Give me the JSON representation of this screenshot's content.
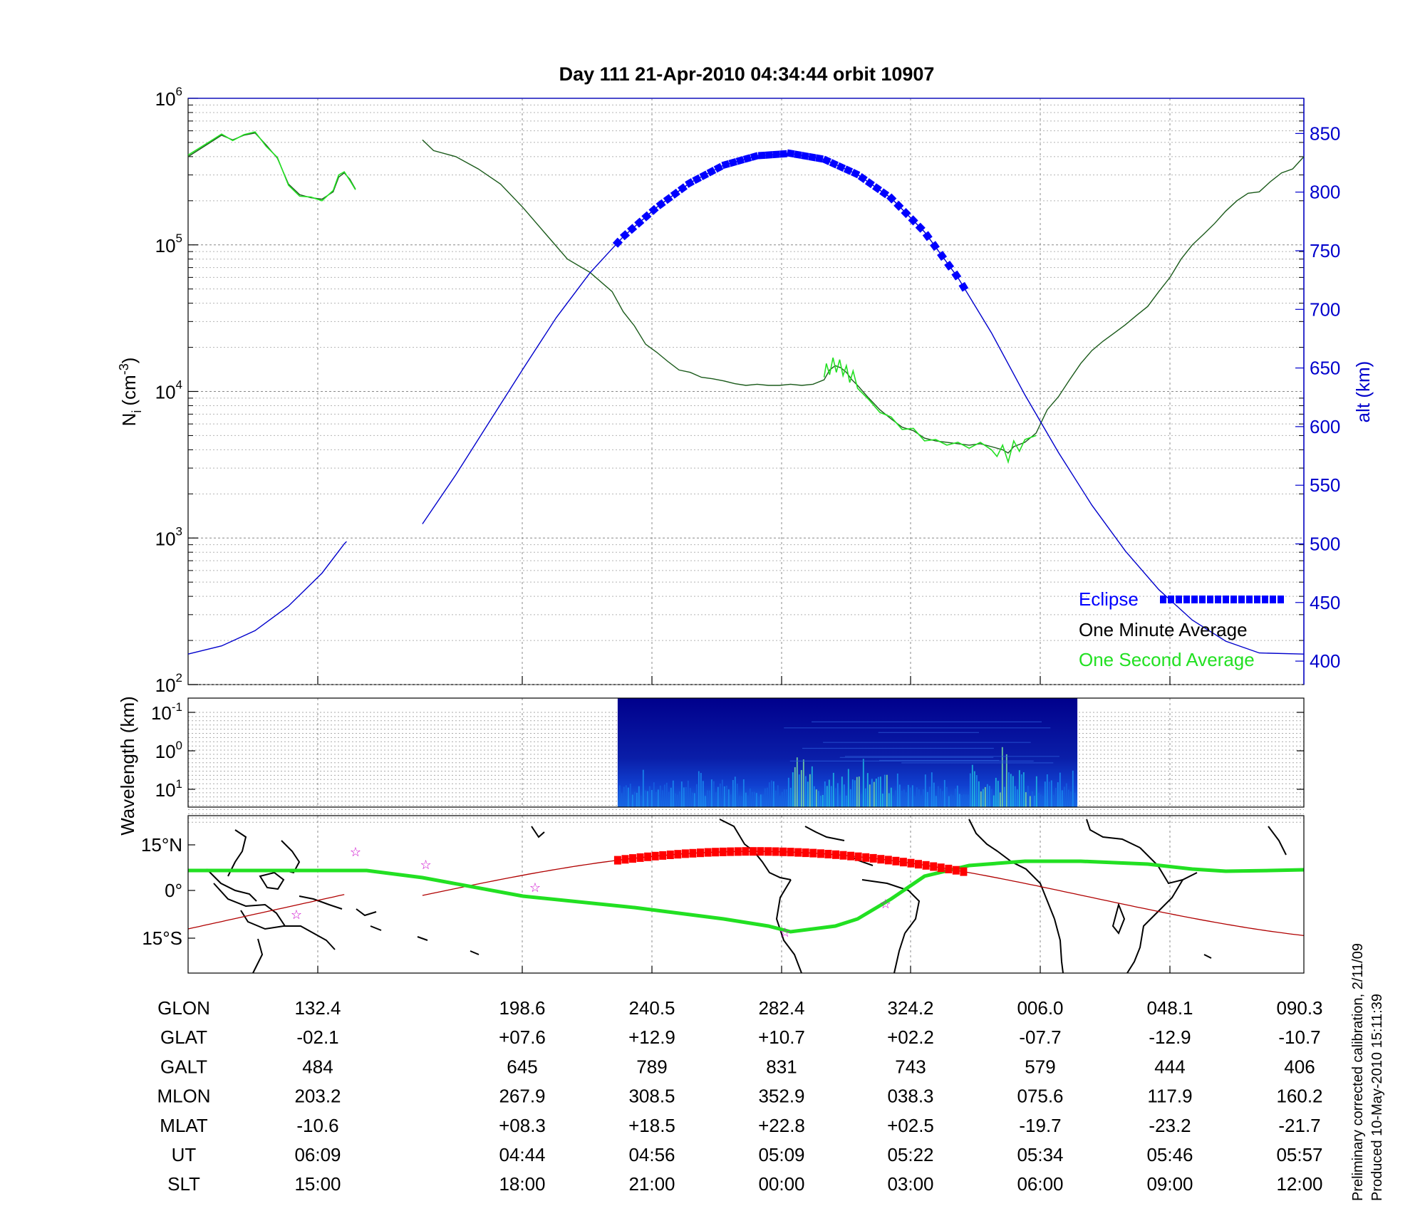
{
  "title": "Day 111  21-Apr-2010 04:34:44   orbit 10907",
  "footer_note": {
    "line1": "Preliminary corrected calibration, 2/11/09",
    "line2": "Produced 10-May-2010 15:11:39"
  },
  "colors": {
    "altitude": "#0000cc",
    "eclipse": "#0000ff",
    "one_minute": "#1a5a1a",
    "one_second": "#22e022",
    "ground_track": "#b00000",
    "eclipse_track": "#ff0000",
    "magnetic_equator": "#22e022",
    "stars": "#cc00cc"
  },
  "chart_data": [
    {
      "type": "line",
      "panel": "density",
      "title": "Day 111  21-Apr-2010 04:34:44   orbit 10907",
      "ylabel": "N",
      "ylabel_sub": "i",
      "ylabel_unit": "(cm",
      "ylabel_unit_sup": "-3",
      "ylabel_unit_close": ")",
      "ylabel_right": "alt (km)",
      "y_log": true,
      "ylim": [
        100,
        1000000
      ],
      "y_ticks": [
        {
          "base": "10",
          "exp": "2",
          "value": 100
        },
        {
          "base": "10",
          "exp": "3",
          "value": 1000
        },
        {
          "base": "10",
          "exp": "4",
          "value": 10000
        },
        {
          "base": "10",
          "exp": "5",
          "value": 100000
        },
        {
          "base": "10",
          "exp": "6",
          "value": 1000000
        }
      ],
      "y2lim": [
        380,
        880
      ],
      "y2_ticks": [
        "400",
        "450",
        "500",
        "550",
        "600",
        "650",
        "700",
        "750",
        "800",
        "850"
      ],
      "x_major": [
        "GLON 132.4",
        "198.6",
        "240.5",
        "282.4",
        "324.2",
        "006.0",
        "048.1",
        "090.3"
      ],
      "grid": true,
      "legend_position": "bottom-right",
      "legend": [
        {
          "label": "Eclipse",
          "color_key": "eclipse",
          "marker": "squares"
        },
        {
          "label": "One Minute Average",
          "color_key": "one_minute"
        },
        {
          "label": "One Second Average",
          "color_key": "one_second"
        }
      ],
      "x_range_note": "x in fractional orbit position, 0 = left edge, 1 = right edge",
      "series": [
        {
          "name": "One Minute Average",
          "segments": [
            [
              [
                0.0,
                400000
              ],
              [
                0.02,
                500000
              ],
              [
                0.03,
                560000
              ],
              [
                0.04,
                520000
              ],
              [
                0.05,
                560000
              ],
              [
                0.06,
                580000
              ],
              [
                0.07,
                480000
              ],
              [
                0.08,
                390000
              ],
              [
                0.09,
                260000
              ],
              [
                0.1,
                220000
              ],
              [
                0.11,
                210000
              ],
              [
                0.12,
                205000
              ],
              [
                0.13,
                230000
              ],
              [
                0.135,
                290000
              ],
              [
                0.14,
                310000
              ],
              [
                0.145,
                280000
              ],
              [
                0.15,
                240000
              ]
            ],
            [
              [
                0.21,
                520000
              ],
              [
                0.22,
                440000
              ],
              [
                0.24,
                400000
              ],
              [
                0.26,
                330000
              ],
              [
                0.28,
                260000
              ],
              [
                0.3,
                180000
              ],
              [
                0.32,
                120000
              ],
              [
                0.34,
                80000
              ],
              [
                0.36,
                65000
              ],
              [
                0.38,
                48000
              ],
              [
                0.39,
                35000
              ],
              [
                0.4,
                28000
              ],
              [
                0.41,
                21000
              ],
              [
                0.42,
                18500
              ],
              [
                0.43,
                16000
              ],
              [
                0.44,
                14000
              ],
              [
                0.45,
                13500
              ],
              [
                0.46,
                12500
              ],
              [
                0.47,
                12200
              ],
              [
                0.48,
                11800
              ],
              [
                0.49,
                11300
              ],
              [
                0.5,
                11000
              ],
              [
                0.51,
                11200
              ],
              [
                0.52,
                11000
              ],
              [
                0.53,
                11000
              ],
              [
                0.54,
                11200
              ],
              [
                0.55,
                11000
              ],
              [
                0.56,
                11200
              ],
              [
                0.57,
                12000
              ],
              [
                0.575,
                14000
              ],
              [
                0.58,
                15000
              ],
              [
                0.585,
                14500
              ],
              [
                0.59,
                13500
              ],
              [
                0.595,
                12000
              ],
              [
                0.6,
                11000
              ],
              [
                0.61,
                9000
              ],
              [
                0.62,
                7500
              ],
              [
                0.63,
                6500
              ],
              [
                0.64,
                5700
              ],
              [
                0.65,
                5400
              ],
              [
                0.66,
                4800
              ],
              [
                0.67,
                4600
              ],
              [
                0.68,
                4500
              ],
              [
                0.69,
                4400
              ],
              [
                0.7,
                4300
              ],
              [
                0.71,
                4400
              ],
              [
                0.72,
                4200
              ],
              [
                0.73,
                4000
              ],
              [
                0.735,
                3800
              ],
              [
                0.74,
                4200
              ],
              [
                0.75,
                4500
              ],
              [
                0.76,
                5200
              ],
              [
                0.77,
                7500
              ],
              [
                0.78,
                9200
              ],
              [
                0.79,
                12000
              ],
              [
                0.8,
                15500
              ],
              [
                0.81,
                19000
              ],
              [
                0.82,
                22000
              ],
              [
                0.83,
                25000
              ],
              [
                0.84,
                28500
              ],
              [
                0.85,
                33000
              ],
              [
                0.86,
                38000
              ],
              [
                0.87,
                48000
              ],
              [
                0.88,
                60000
              ],
              [
                0.89,
                80000
              ],
              [
                0.9,
                100000
              ],
              [
                0.91,
                118000
              ],
              [
                0.92,
                140000
              ],
              [
                0.93,
                170000
              ],
              [
                0.94,
                200000
              ],
              [
                0.95,
                225000
              ],
              [
                0.96,
                230000
              ],
              [
                0.97,
                270000
              ],
              [
                0.98,
                310000
              ],
              [
                0.99,
                330000
              ],
              [
                1.0,
                400000
              ]
            ]
          ]
        },
        {
          "name": "One Second Average",
          "segments": [
            [
              [
                0.0,
                410000
              ],
              [
                0.02,
                510000
              ],
              [
                0.03,
                570000
              ],
              [
                0.04,
                515000
              ],
              [
                0.05,
                565000
              ],
              [
                0.06,
                590000
              ],
              [
                0.07,
                470000
              ],
              [
                0.08,
                395000
              ],
              [
                0.09,
                255000
              ],
              [
                0.1,
                215000
              ],
              [
                0.11,
                212000
              ],
              [
                0.12,
                200000
              ],
              [
                0.13,
                235000
              ],
              [
                0.135,
                300000
              ],
              [
                0.14,
                315000
              ],
              [
                0.145,
                275000
              ],
              [
                0.15,
                238000
              ]
            ],
            [
              [
                0.57,
                12500
              ],
              [
                0.572,
                15500
              ],
              [
                0.575,
                13000
              ],
              [
                0.578,
                17000
              ],
              [
                0.581,
                13500
              ],
              [
                0.584,
                16500
              ],
              [
                0.587,
                12800
              ],
              [
                0.59,
                15000
              ],
              [
                0.593,
                11500
              ],
              [
                0.596,
                13800
              ],
              [
                0.6,
                10500
              ],
              [
                0.61,
                8800
              ],
              [
                0.62,
                7200
              ],
              [
                0.63,
                6700
              ],
              [
                0.64,
                5500
              ],
              [
                0.65,
                5600
              ],
              [
                0.66,
                4600
              ],
              [
                0.67,
                4700
              ],
              [
                0.68,
                4300
              ],
              [
                0.69,
                4500
              ],
              [
                0.7,
                4100
              ],
              [
                0.71,
                4500
              ],
              [
                0.72,
                4000
              ],
              [
                0.725,
                3600
              ],
              [
                0.73,
                4300
              ],
              [
                0.735,
                3300
              ],
              [
                0.74,
                4600
              ],
              [
                0.745,
                3900
              ],
              [
                0.75,
                4700
              ],
              [
                0.76,
                5000
              ]
            ]
          ]
        },
        {
          "name": "alt (km)",
          "axis": "right",
          "segments": [
            [
              [
                0.0,
                406
              ],
              [
                0.03,
                413
              ],
              [
                0.06,
                426
              ],
              [
                0.09,
                447
              ],
              [
                0.12,
                475
              ],
              [
                0.14,
                500
              ],
              [
                0.142,
                502
              ]
            ],
            [
              [
                0.21,
                517
              ],
              [
                0.24,
                559
              ],
              [
                0.27,
                604
              ],
              [
                0.3,
                649
              ],
              [
                0.33,
                693
              ],
              [
                0.36,
                731
              ],
              [
                0.39,
                762
              ],
              [
                0.42,
                787
              ],
              [
                0.45,
                808
              ],
              [
                0.48,
                823
              ],
              [
                0.51,
                831
              ],
              [
                0.54,
                833
              ],
              [
                0.57,
                828
              ],
              [
                0.6,
                815
              ],
              [
                0.63,
                795
              ],
              [
                0.66,
                766
              ],
              [
                0.69,
                727
              ],
              [
                0.72,
                680
              ],
              [
                0.75,
                627
              ],
              [
                0.78,
                578
              ],
              [
                0.81,
                533
              ],
              [
                0.84,
                494
              ],
              [
                0.87,
                461
              ],
              [
                0.9,
                435
              ],
              [
                0.93,
                417
              ],
              [
                0.96,
                407
              ],
              [
                1.0,
                406
              ]
            ]
          ]
        }
      ],
      "eclipse": {
        "x_start": 0.385,
        "x_end": 0.695
      }
    },
    {
      "type": "heatmap",
      "panel": "spectrogram",
      "ylabel": "Wavelength (km)",
      "y_ticks": [
        {
          "base": "10",
          "exp": "-1"
        },
        {
          "base": "10",
          "exp": "0"
        },
        {
          "base": "10",
          "exp": "1"
        }
      ],
      "x_start": 0.385,
      "x_end": 0.797
    },
    {
      "type": "line",
      "panel": "map",
      "y_ticks": [
        "15°N",
        "0°",
        "15°S"
      ],
      "series": [
        {
          "name": "ground track"
        },
        {
          "name": "magnetic equator"
        },
        {
          "name": "eclipse track"
        }
      ]
    },
    {
      "type": "table",
      "panel": "ephemeris",
      "rows": [
        {
          "label": "GLON",
          "values": [
            "132.4",
            "198.6",
            "240.5",
            "282.4",
            "324.2",
            "006.0",
            "048.1",
            "090.3"
          ]
        },
        {
          "label": "GLAT",
          "values": [
            "-02.1",
            "+07.6",
            "+12.9",
            "+10.7",
            "+02.2",
            "-07.7",
            "-12.9",
            "-10.7"
          ]
        },
        {
          "label": "GALT",
          "values": [
            "484",
            "645",
            "789",
            "831",
            "743",
            "579",
            "444",
            "406"
          ]
        },
        {
          "label": "MLON",
          "values": [
            "203.2",
            "267.9",
            "308.5",
            "352.9",
            "038.3",
            "075.6",
            "117.9",
            "160.2"
          ]
        },
        {
          "label": "MLAT",
          "values": [
            "-10.6",
            "+08.3",
            "+18.5",
            "+22.8",
            "+02.5",
            "-19.7",
            "-23.2",
            "-21.7"
          ]
        },
        {
          "label": "UT",
          "values": [
            "06:09",
            "04:44",
            "04:56",
            "05:09",
            "05:22",
            "05:34",
            "05:46",
            "05:57"
          ]
        },
        {
          "label": "SLT",
          "values": [
            "15:00",
            "18:00",
            "21:00",
            "00:00",
            "03:00",
            "06:00",
            "09:00",
            "12:00"
          ]
        }
      ]
    }
  ]
}
